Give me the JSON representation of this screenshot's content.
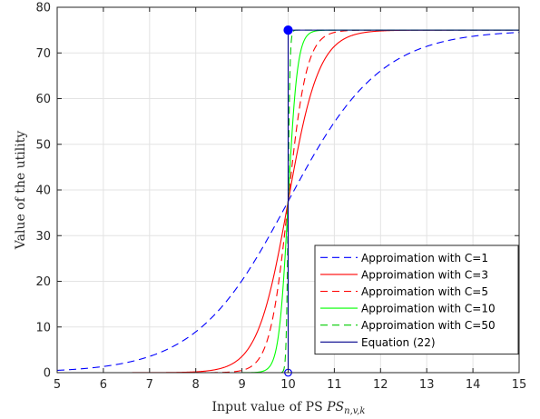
{
  "chart_data": {
    "type": "line",
    "title": "",
    "xlabel": "Input value of PS",
    "xlabel_subscript": "n,v,k",
    "ylabel": "Value of the utility",
    "xlim": [
      5,
      15
    ],
    "ylim": [
      0,
      80
    ],
    "x_ticks": [
      5,
      6,
      7,
      8,
      9,
      10,
      11,
      12,
      13,
      14,
      15
    ],
    "y_ticks": [
      0,
      10,
      20,
      30,
      40,
      50,
      60,
      70,
      80
    ],
    "grid": true,
    "legend_position": "bottom-right",
    "threshold": 10,
    "max_value": 75,
    "series": [
      {
        "name": "Approimation with C=1",
        "C": 1,
        "color": "#0000ff",
        "dash": "dashed"
      },
      {
        "name": "Approimation with C=3",
        "C": 3,
        "color": "#ff0000",
        "dash": "solid"
      },
      {
        "name": "Approimation with C=5",
        "C": 5,
        "color": "#ff0000",
        "dash": "dashed"
      },
      {
        "name": "Approimation with C=10",
        "C": 10,
        "color": "#00ff00",
        "dash": "solid"
      },
      {
        "name": "Approimation with C=50",
        "C": 50,
        "color": "#00cc00",
        "dash": "dashed"
      },
      {
        "name": "Equation (22)",
        "color": "#00008b",
        "dash": "solid",
        "step": true,
        "points": [
          [
            5,
            0
          ],
          [
            10,
            0
          ],
          [
            10,
            75
          ],
          [
            15,
            75
          ]
        ]
      }
    ],
    "markers": [
      {
        "x": 10,
        "y": 75,
        "filled": true,
        "color": "#0000ff"
      },
      {
        "x": 10,
        "y": 0,
        "filled": false,
        "color": "#0000ff"
      }
    ]
  }
}
